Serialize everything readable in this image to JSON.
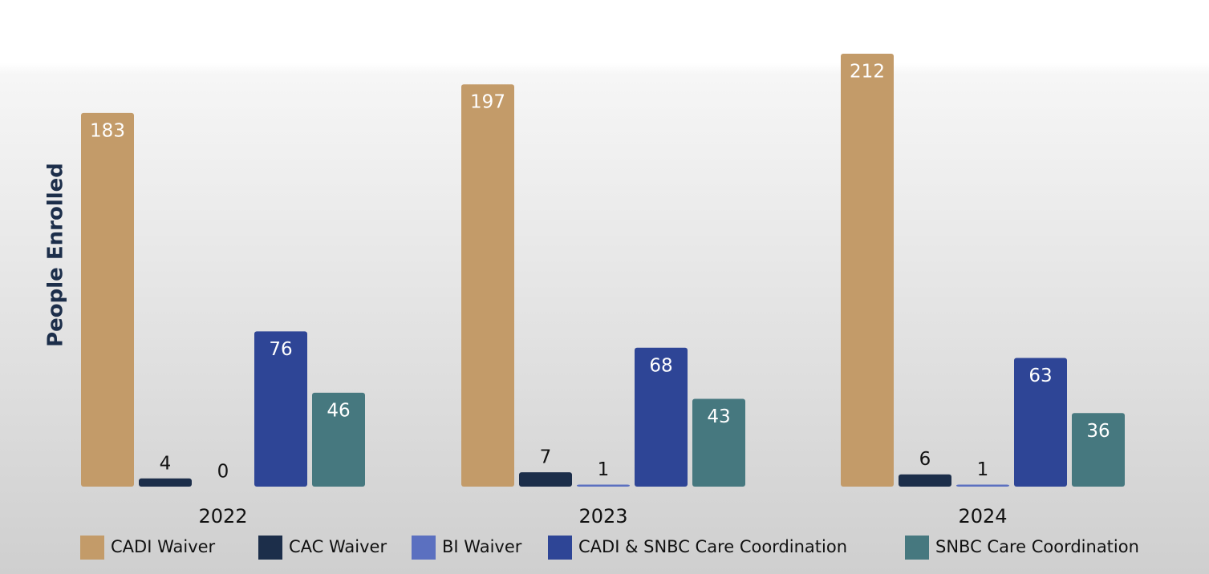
{
  "chart_data": {
    "type": "bar",
    "ylabel": "People Enrolled",
    "categories": [
      "2022",
      "2023",
      "2024"
    ],
    "series": [
      {
        "name": "CADI Waiver",
        "color": "#c39b69",
        "values": [
          183,
          197,
          212
        ]
      },
      {
        "name": "CAC Waiver",
        "color": "#1c2e4a",
        "values": [
          4,
          7,
          6
        ]
      },
      {
        "name": "BI Waiver",
        "color": "#5b70c0",
        "values": [
          0,
          1,
          1
        ]
      },
      {
        "name": "CADI & SNBC Care Coordination",
        "color": "#2e4596",
        "values": [
          76,
          68,
          63
        ]
      },
      {
        "name": "SNBC Care Coordination",
        "color": "#46787f",
        "values": [
          46,
          43,
          36
        ]
      }
    ]
  }
}
